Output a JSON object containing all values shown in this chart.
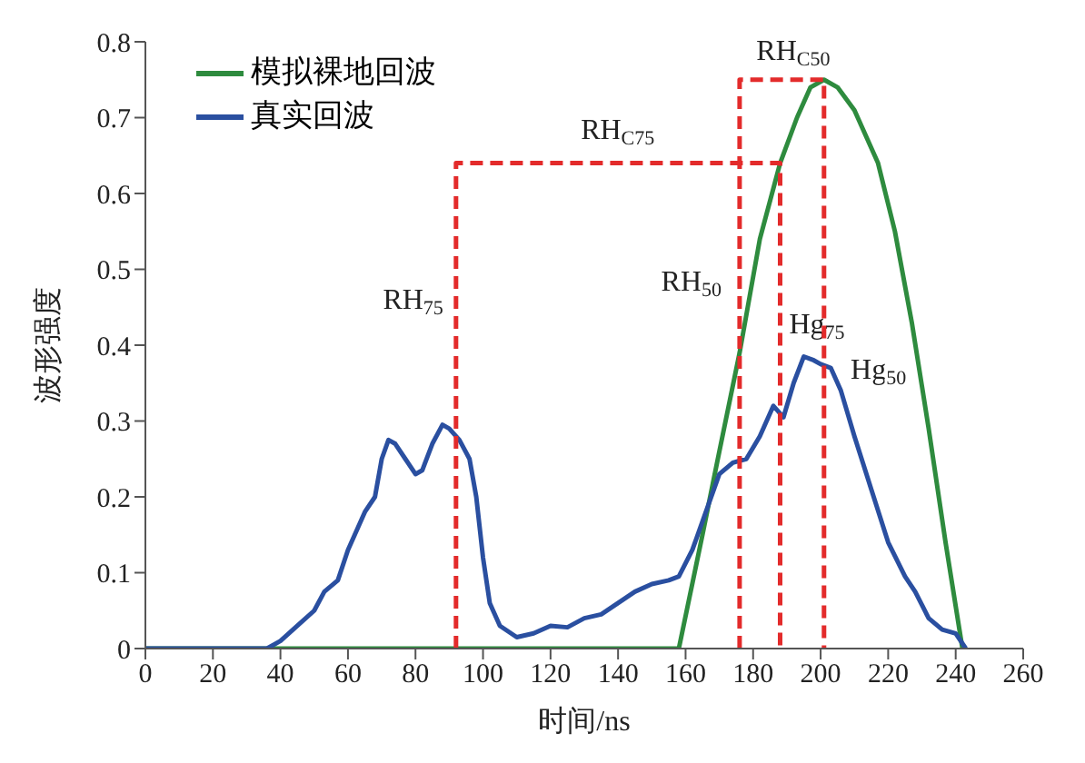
{
  "chart_data": {
    "type": "line",
    "xlabel": "时间/ns",
    "ylabel": "波形强度",
    "xlim": [
      0,
      260
    ],
    "ylim": [
      0,
      0.8
    ],
    "xticks": [
      0,
      20,
      40,
      60,
      80,
      100,
      120,
      140,
      160,
      180,
      200,
      220,
      240,
      260
    ],
    "yticks": [
      0,
      0.1,
      0.2,
      0.3,
      0.4,
      0.5,
      0.6,
      0.7,
      0.8
    ],
    "grid": false,
    "legend": "top left",
    "marker": "none",
    "series": [
      {
        "name": "模拟裸地回波",
        "color": "#2e8b3e",
        "line_style": "solid",
        "x": [
          0,
          158,
          165,
          170,
          176,
          182,
          188,
          193,
          197,
          201,
          205,
          210,
          217,
          222,
          227,
          232,
          237,
          242
        ],
        "values": [
          0,
          0,
          0.15,
          0.26,
          0.39,
          0.54,
          0.64,
          0.7,
          0.74,
          0.75,
          0.74,
          0.71,
          0.64,
          0.55,
          0.43,
          0.29,
          0.14,
          0
        ]
      },
      {
        "name": "真实回波",
        "color": "#2a4fa0",
        "line_style": "solid",
        "x": [
          0,
          36,
          40,
          45,
          50,
          53,
          57,
          60,
          65,
          68,
          70,
          72,
          74,
          77,
          80,
          82,
          85,
          88,
          90,
          93,
          96,
          98,
          100,
          102,
          105,
          110,
          115,
          120,
          125,
          130,
          135,
          140,
          145,
          150,
          155,
          158,
          162,
          166,
          170,
          174,
          178,
          182,
          186,
          189,
          192,
          195,
          198,
          200,
          203,
          206,
          210,
          215,
          220,
          225,
          228,
          232,
          236,
          240,
          243
        ],
        "values": [
          0,
          0,
          0.01,
          0.03,
          0.05,
          0.075,
          0.09,
          0.13,
          0.18,
          0.2,
          0.25,
          0.275,
          0.27,
          0.25,
          0.23,
          0.235,
          0.27,
          0.295,
          0.29,
          0.275,
          0.25,
          0.2,
          0.12,
          0.06,
          0.03,
          0.015,
          0.02,
          0.03,
          0.028,
          0.04,
          0.045,
          0.06,
          0.075,
          0.085,
          0.09,
          0.095,
          0.13,
          0.18,
          0.23,
          0.245,
          0.25,
          0.28,
          0.32,
          0.305,
          0.35,
          0.385,
          0.38,
          0.375,
          0.37,
          0.34,
          0.28,
          0.21,
          0.14,
          0.095,
          0.075,
          0.04,
          0.025,
          0.02,
          0
        ]
      },
      {
        "color": "#e32b2b",
        "line_style": "dashed",
        "x": [
          92,
          92,
          188,
          188
        ],
        "values": [
          0,
          0.64,
          0.64,
          0
        ]
      },
      {
        "color": "#e32b2b",
        "line_style": "dashed",
        "x": [
          176,
          176,
          201,
          201
        ],
        "values": [
          0,
          0.75,
          0.75,
          0
        ]
      }
    ],
    "annotations": [
      "RH$_{75}$",
      "RH$_{C75}$",
      "RH$_{C50}$",
      "RH$_{50}$",
      "Hg$_{75}$",
      "Hg$_{50}$"
    ]
  }
}
